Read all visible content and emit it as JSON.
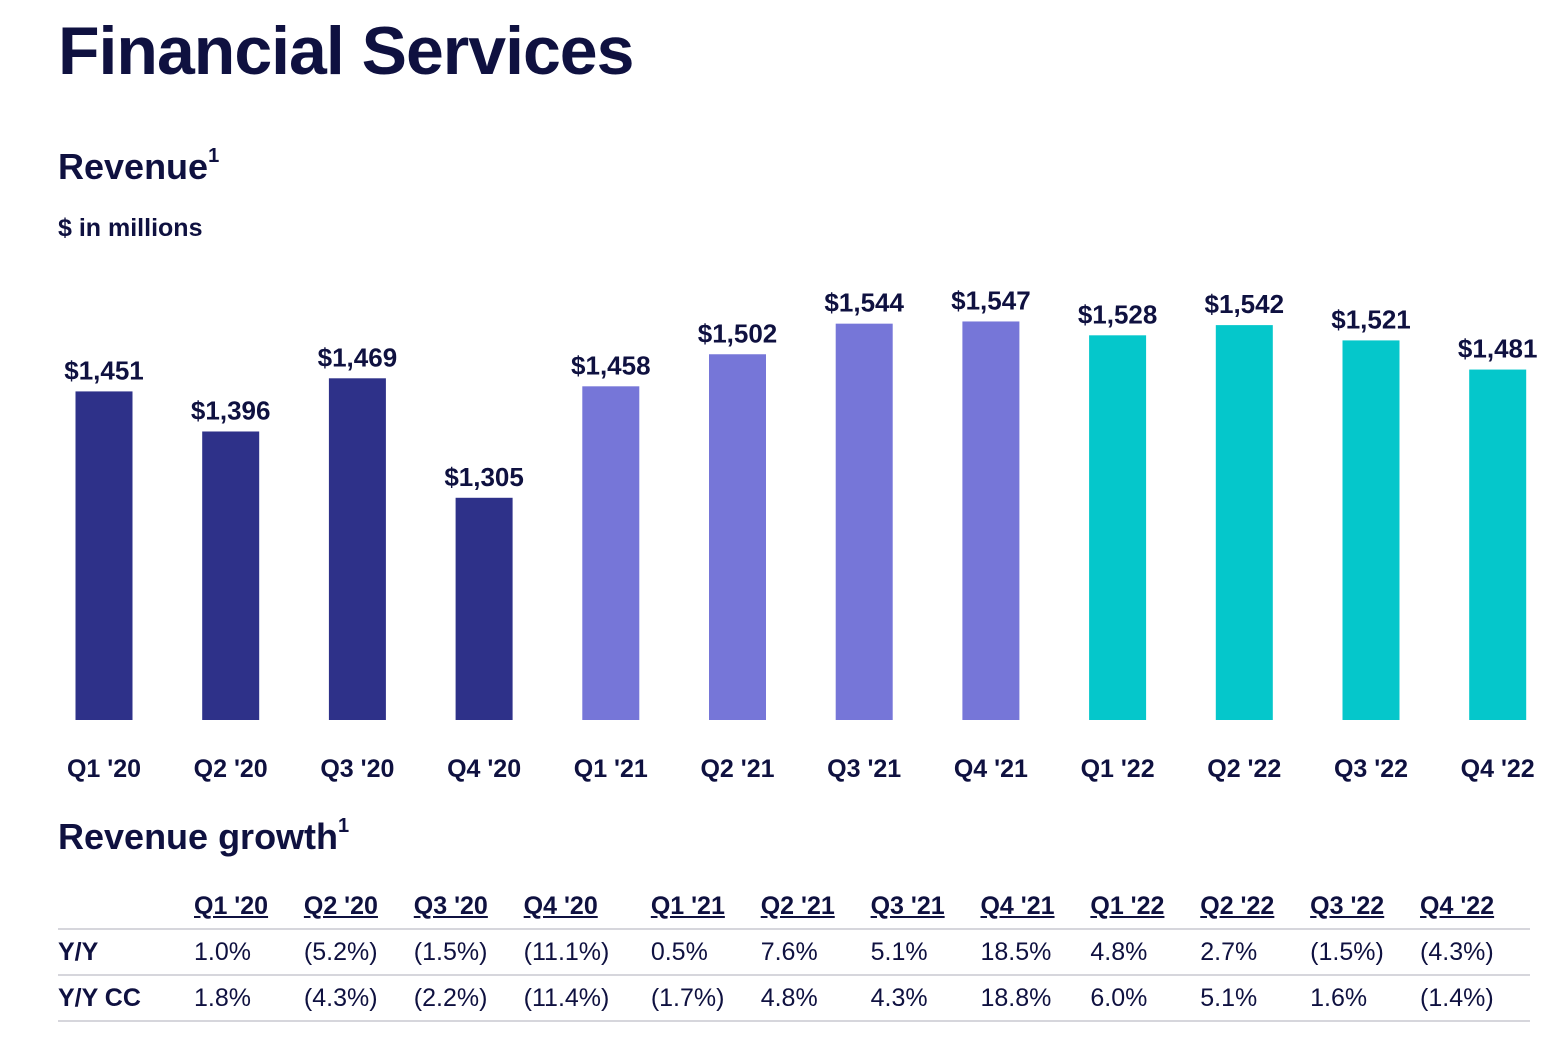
{
  "page_title": "Financial Services",
  "revenue_section": {
    "title": "Revenue",
    "footnote": "1",
    "units": "$ in millions"
  },
  "growth_section": {
    "title": "Revenue growth",
    "footnote": "1"
  },
  "colors": {
    "2020": "#2e3189",
    "2021": "#7676d8",
    "2022": "#05c7cb",
    "text": "#0f1140"
  },
  "chart_data": {
    "type": "bar",
    "categories": [
      "Q1 '20",
      "Q2 '20",
      "Q3 '20",
      "Q4 '20",
      "Q1 '21",
      "Q2 '21",
      "Q3 '21",
      "Q4 '21",
      "Q1 '22",
      "Q2 '22",
      "Q3 '22",
      "Q4 '22"
    ],
    "values": [
      1451,
      1396,
      1469,
      1305,
      1458,
      1502,
      1544,
      1547,
      1528,
      1542,
      1521,
      1481
    ],
    "data_labels": [
      "$1,451",
      "$1,396",
      "$1,469",
      "$1,305",
      "$1,458",
      "$1,502",
      "$1,544",
      "$1,547",
      "$1,528",
      "$1,542",
      "$1,521",
      "$1,481"
    ],
    "bar_colors": [
      "#2e3189",
      "#2e3189",
      "#2e3189",
      "#2e3189",
      "#7676d8",
      "#7676d8",
      "#7676d8",
      "#7676d8",
      "#05c7cb",
      "#05c7cb",
      "#05c7cb",
      "#05c7cb"
    ],
    "title": "Revenue",
    "ylabel": "$ in millions",
    "ylim": [
      1000,
      1560
    ],
    "grid": false
  },
  "growth_table": {
    "headers": [
      "",
      "Q1 '20",
      "Q2 '20",
      "Q3 '20",
      "Q4 '20",
      "Q1 '21",
      "Q2 '21",
      "Q3 '21",
      "Q4 '21",
      "Q1 '22",
      "Q2 '22",
      "Q3 '22",
      "Q4 '22"
    ],
    "rows": [
      {
        "label": "Y/Y",
        "values": [
          "1.0%",
          "(5.2%)",
          "(1.5%)",
          "(11.1%)",
          "0.5%",
          "7.6%",
          "5.1%",
          "18.5%",
          "4.8%",
          "2.7%",
          "(1.5%)",
          "(4.3%)"
        ]
      },
      {
        "label": "Y/Y CC",
        "values": [
          "1.8%",
          "(4.3%)",
          "(2.2%)",
          "(11.4%)",
          "(1.7%)",
          "4.8%",
          "4.3%",
          "18.8%",
          "6.0%",
          "5.1%",
          "1.6%",
          "(1.4%)"
        ]
      }
    ]
  }
}
